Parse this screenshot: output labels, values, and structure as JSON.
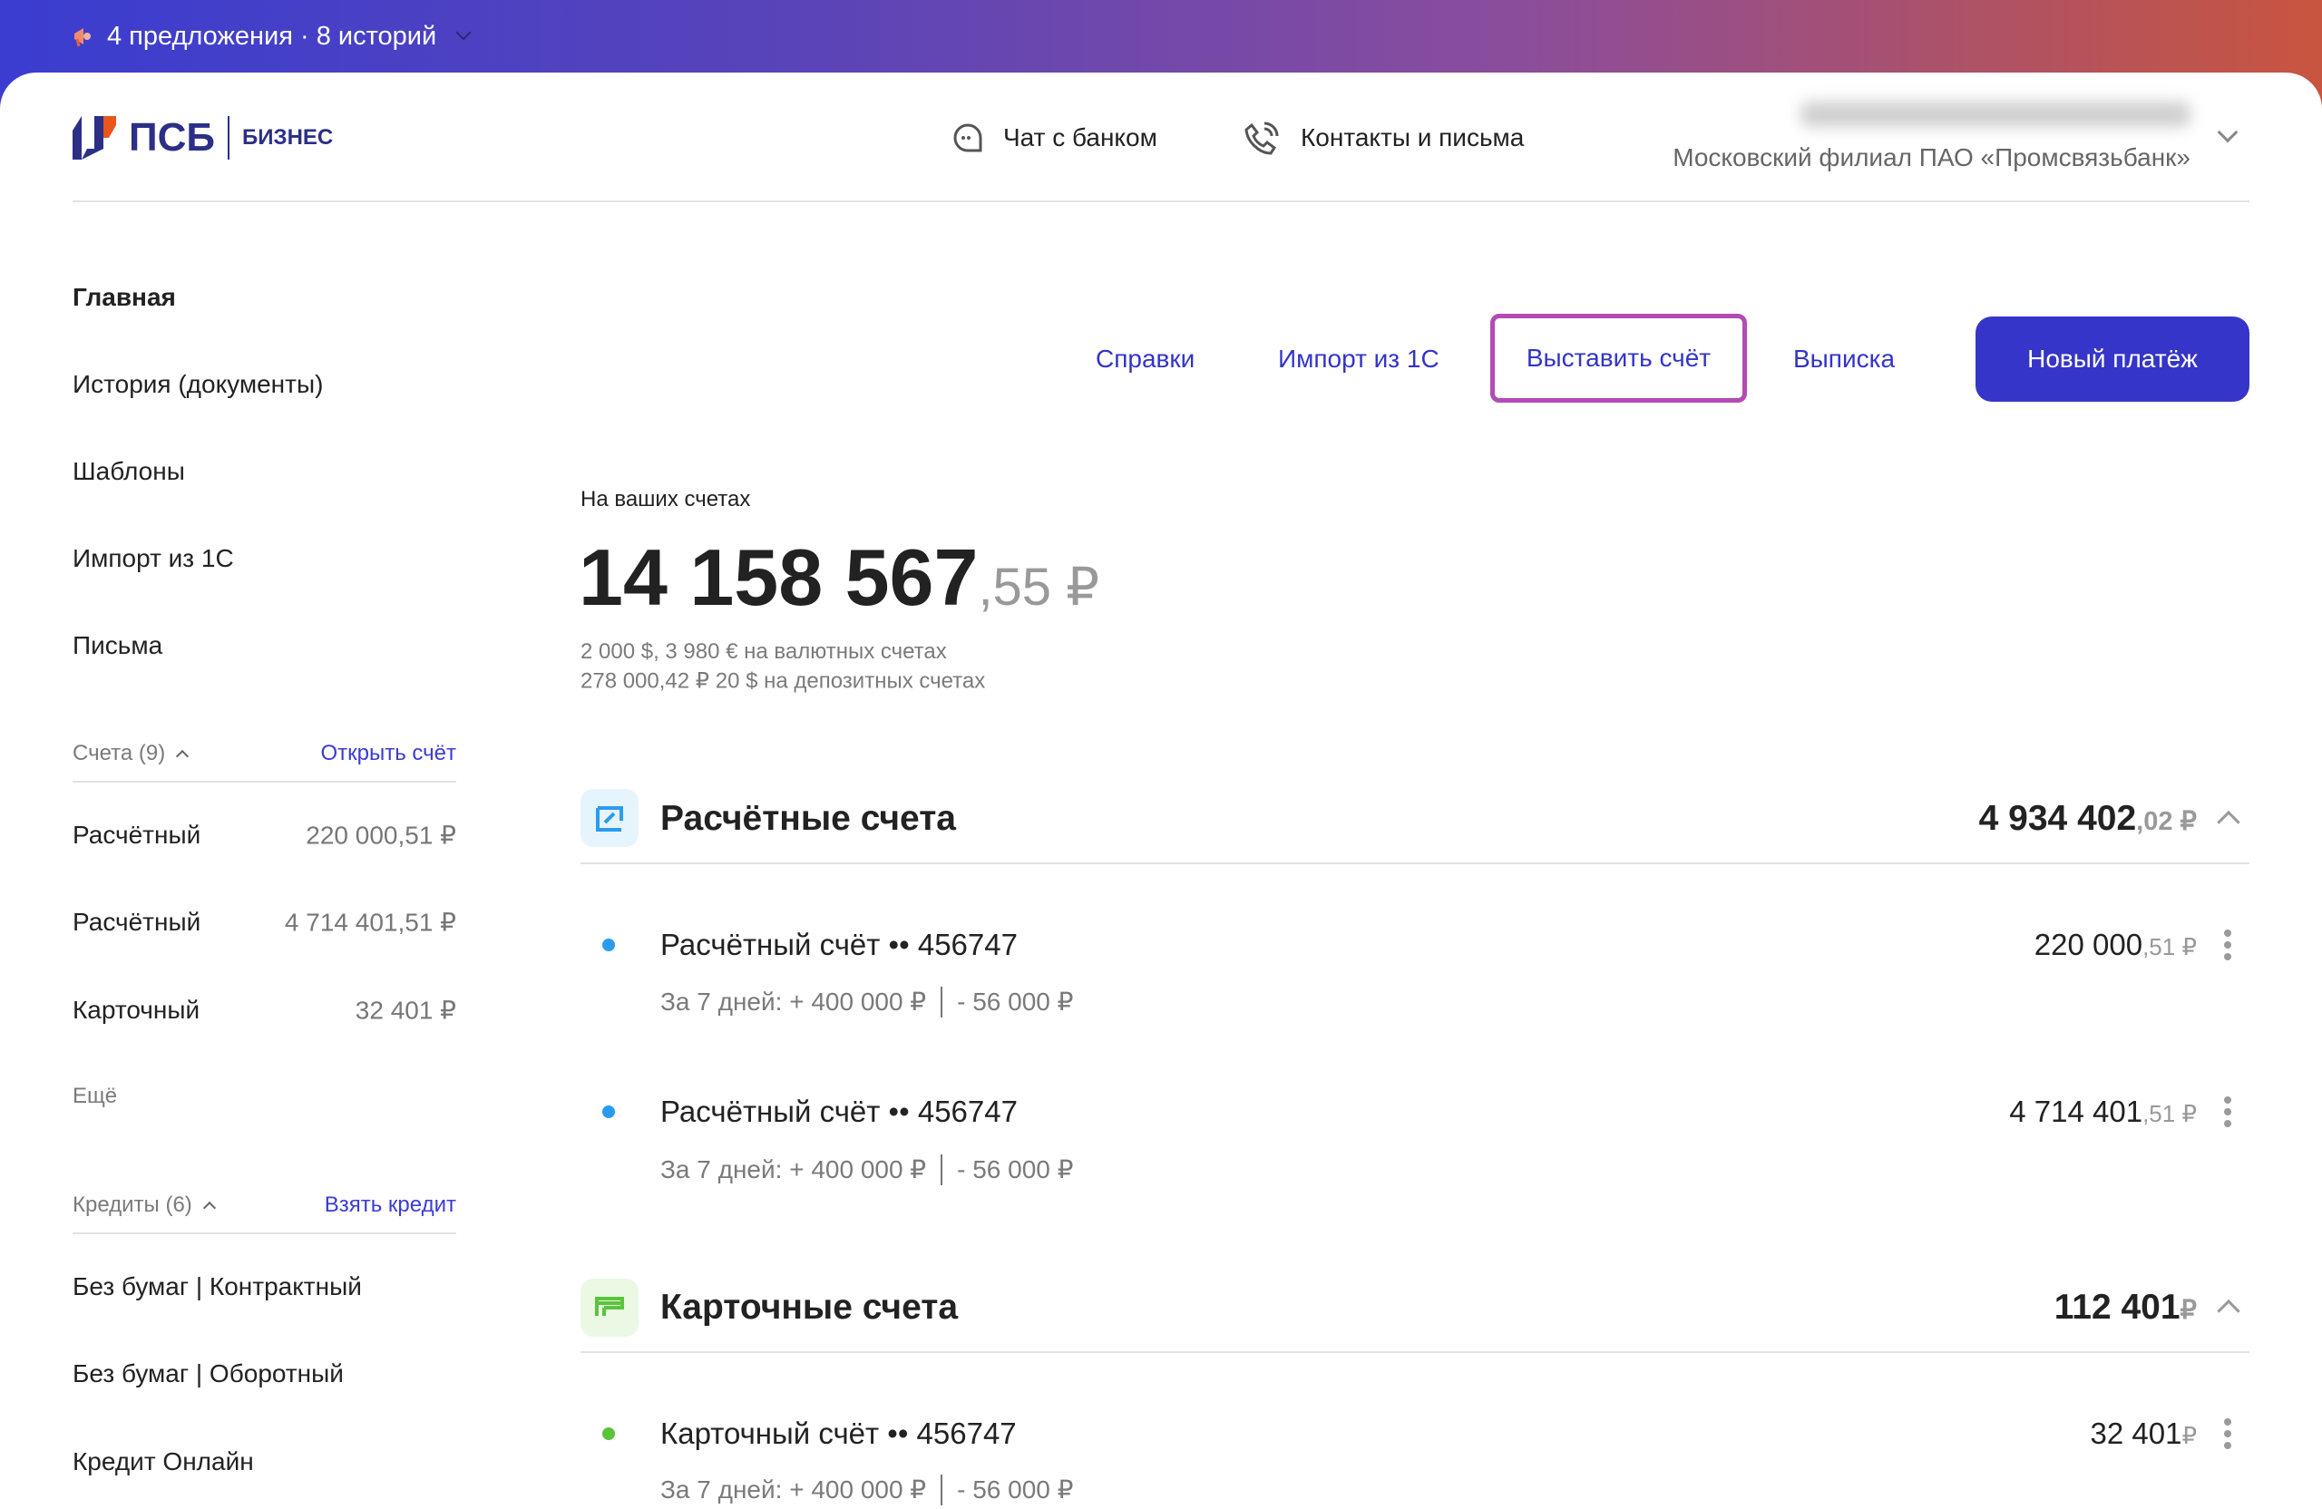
{
  "topbar": {
    "text": "4 предложения · 8 историй",
    "icon": "megaphone-icon"
  },
  "header": {
    "logo": "ПСБ",
    "logo_sub": "БИЗНЕС",
    "chat": "Чат с банком",
    "contacts": "Контакты и письма",
    "branch": "Московский филиал ПАО «Промсвязьбанк»"
  },
  "sidebar": {
    "items": [
      "Главная",
      "История (документы)",
      "Шаблоны",
      "Импорт из 1С",
      "Письма"
    ],
    "accounts": {
      "title": "Счета (9)",
      "action": "Открыть счёт",
      "rows": [
        {
          "name": "Расчётный",
          "amount": "220 000,51 ₽"
        },
        {
          "name": "Расчётный",
          "amount": "4 714 401,51 ₽"
        },
        {
          "name": "Карточный",
          "amount": "32 401 ₽"
        }
      ],
      "more": "Ещё"
    },
    "credits": {
      "title": "Кредиты (6)",
      "action": "Взять кредит",
      "rows": [
        "Без бумаг | Контрактный",
        "Без бумаг | Оборотный",
        "Кредит Онлайн"
      ]
    }
  },
  "actions": {
    "references": "Справки",
    "import": "Импорт из 1С",
    "invoice": "Выставить счёт",
    "statement": "Выписка",
    "new_payment": "Новый платёж"
  },
  "summary": {
    "label": "На ваших счетах",
    "whole": "14 158 567",
    "cents": ",55 ₽",
    "currency_line": "2 000 $, 3 980 € на валютных счетах",
    "deposit_line": "278 000,42 ₽ 20 $ на депозитных счетах"
  },
  "sections": [
    {
      "title": "Расчётные счета",
      "whole": "4 934 402",
      "cents": ",02 ₽",
      "color": "#2a9cf0",
      "rows": [
        {
          "title": "Расчётный счёт •• 456747",
          "sub_in": "За 7 дней: + 400 000 ₽",
          "sub_out": "- 56 000 ₽",
          "whole": "220 000",
          "cents": ",51 ₽"
        },
        {
          "title": "Расчётный счёт •• 456747",
          "sub_in": "За 7 дней: + 400 000 ₽",
          "sub_out": "- 56 000 ₽",
          "whole": "4 714 401",
          "cents": ",51 ₽"
        }
      ]
    },
    {
      "title": "Карточные счета",
      "whole": "112 401",
      "cents": " ₽",
      "color": "#5ac43c",
      "rows": [
        {
          "title": "Карточный счёт •• 456747",
          "sub_in": "За 7 дней: + 400 000 ₽",
          "sub_out": "- 56 000 ₽",
          "whole": "32 401",
          "cents": " ₽"
        }
      ]
    }
  ]
}
